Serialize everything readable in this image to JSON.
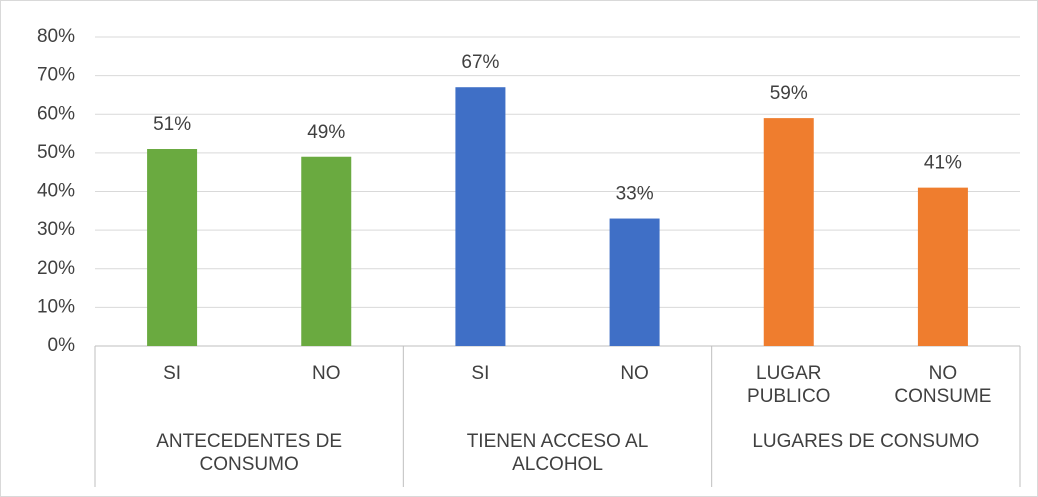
{
  "chart_data": {
    "type": "bar",
    "categories": [
      "SI",
      "NO",
      "SI",
      "NO",
      "LUGAR PUBLICO",
      "NO CONSUME"
    ],
    "groups": [
      "ANTECEDENTES DE CONSUMO",
      "TIENEN ACCESO AL ALCOHOL",
      "LUGARES DE CONSUMO"
    ],
    "values": [
      51,
      49,
      67,
      33,
      59,
      41
    ],
    "value_labels": [
      "51%",
      "49%",
      "67%",
      "33%",
      "59%",
      "41%"
    ],
    "colors": [
      "#6aaa40",
      "#6aaa40",
      "#3f6fc6",
      "#3f6fc6",
      "#ef7d2e",
      "#ef7d2e"
    ],
    "ylim": [
      0,
      80
    ],
    "yticks": [
      {
        "value": 0,
        "label": "0%"
      },
      {
        "value": 10,
        "label": "10%"
      },
      {
        "value": 20,
        "label": "20%"
      },
      {
        "value": 30,
        "label": "30%"
      },
      {
        "value": 40,
        "label": "40%"
      },
      {
        "value": 50,
        "label": "50%"
      },
      {
        "value": 60,
        "label": "60%"
      },
      {
        "value": 70,
        "label": "70%"
      },
      {
        "value": 80,
        "label": "80%"
      }
    ],
    "grid": true
  }
}
